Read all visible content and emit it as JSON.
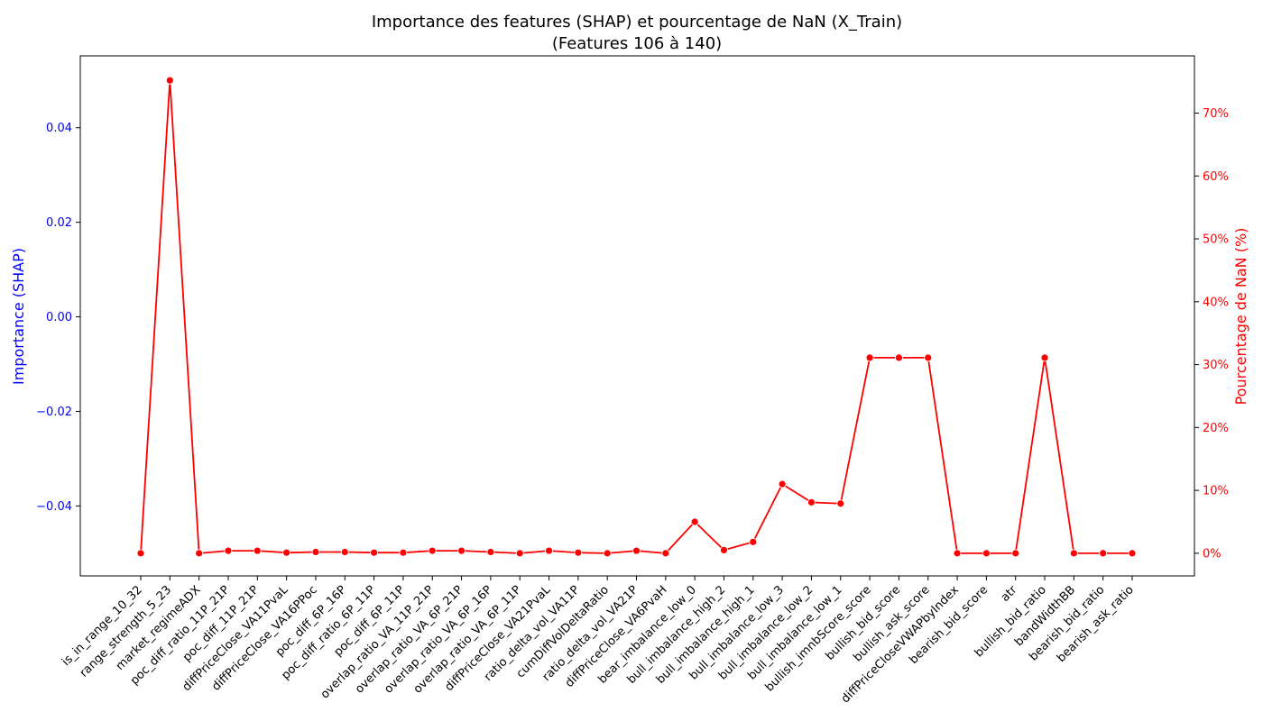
{
  "chart_data": {
    "type": "line",
    "title_line1": "Importance des features (SHAP) et pourcentage de NaN (X_Train)",
    "title_line2": "(Features 106 à 140)",
    "left_axis": {
      "label": "Importance (SHAP)",
      "color": "#0000ff",
      "range": [
        -0.0548,
        0.0552
      ],
      "ticks": [
        -0.04,
        -0.02,
        0.0,
        0.02,
        0.04
      ],
      "tick_labels": [
        "−0.04",
        "−0.02",
        "0.00",
        "0.02",
        "0.04"
      ]
    },
    "right_axis": {
      "label": "Pourcentage de NaN (%)",
      "color": "#ff0000",
      "range": [
        -3.6,
        79.1
      ],
      "ticks": [
        0,
        10,
        20,
        30,
        40,
        50,
        60,
        70
      ],
      "tick_labels": [
        "0%",
        "10%",
        "20%",
        "30%",
        "40%",
        "50%",
        "60%",
        "70%"
      ]
    },
    "categories": [
      "is_in_range_10_32",
      "range_strength_5_23",
      "market_regimeADX",
      "poc_diff_ratio_11P_21P",
      "poc_diff_11P_21P",
      "diffPriceClose_VA11PvaL",
      "diffPriceClose_VA16PPoc",
      "poc_diff_6P_16P",
      "poc_diff_ratio_6P_11P",
      "poc_diff_6P_11P",
      "overlap_ratio_VA_11P_21P",
      "overlap_ratio_VA_6P_21P",
      "overlap_ratio_VA_6P_16P",
      "overlap_ratio_VA_6P_11P",
      "diffPriceClose_VA21PvaL",
      "ratio_delta_vol_VA11P",
      "cumDiffVolDeltaRatio",
      "ratio_delta_vol_VA21P",
      "diffPriceClose_VA6PvaH",
      "bear_imbalance_low_0",
      "bull_imbalance_high_2",
      "bull_imbalance_high_1",
      "bull_imbalance_low_3",
      "bull_imbalance_low_2",
      "bull_imbalance_low_1",
      "bullish_imnbScore_score",
      "bullish_bid_score",
      "bullish_ask_score",
      "diffPriceCloseVWAPbyIndex",
      "bearish_bid_score",
      "atr",
      "bullish_bid_ratio",
      "bandWidthBB",
      "bearish_bid_ratio",
      "bearish_ask_ratio"
    ],
    "series": [
      {
        "name": "",
        "axis": "right",
        "color": "#ff0000",
        "values": [
          0.0,
          75.2,
          0.0,
          0.4,
          0.4,
          0.1,
          0.2,
          0.2,
          0.1,
          0.1,
          0.4,
          0.4,
          0.2,
          0.0,
          0.4,
          0.1,
          0.0,
          0.4,
          0.0,
          5.0,
          0.5,
          1.8,
          11.0,
          8.1,
          7.9,
          31.1,
          31.1,
          31.1,
          0.0,
          0.0,
          0.0,
          31.1,
          0.0,
          0.0,
          0.0
        ]
      }
    ],
    "grid": false,
    "legend": "none"
  }
}
